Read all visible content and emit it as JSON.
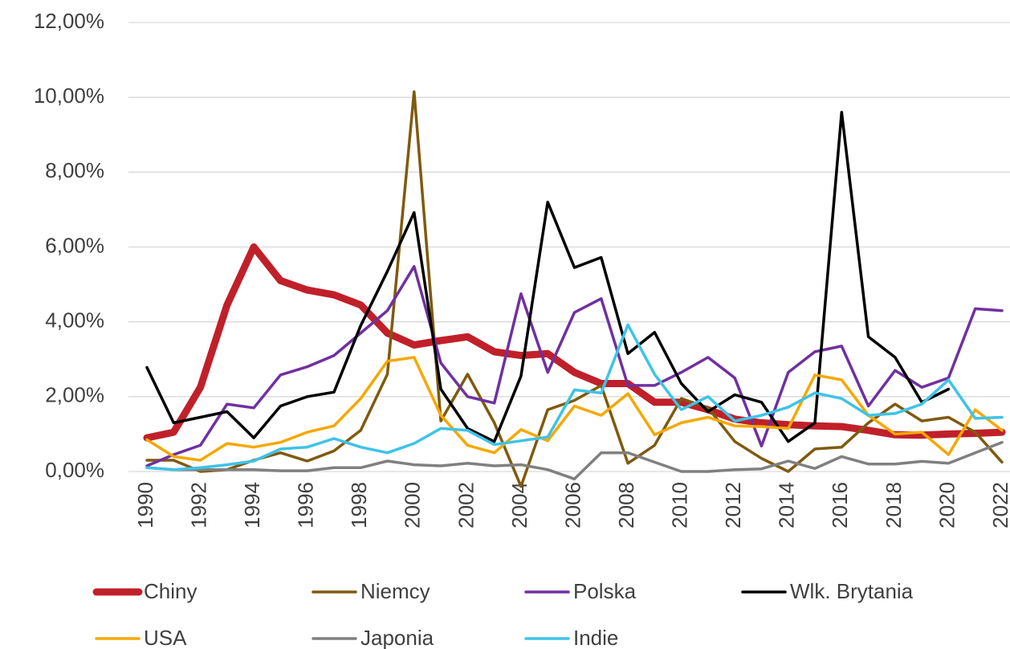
{
  "chart_data": {
    "type": "line",
    "x": [
      1990,
      1991,
      1992,
      1993,
      1994,
      1995,
      1996,
      1997,
      1998,
      1999,
      2000,
      2001,
      2002,
      2003,
      2004,
      2005,
      2006,
      2007,
      2008,
      2009,
      2010,
      2011,
      2012,
      2013,
      2014,
      2015,
      2016,
      2017,
      2018,
      2019,
      2020,
      2021,
      2022
    ],
    "xlim": [
      1990,
      2022
    ],
    "xticks": [
      1990,
      1992,
      1994,
      1996,
      1998,
      2000,
      2002,
      2004,
      2006,
      2008,
      2010,
      2012,
      2014,
      2016,
      2018,
      2020,
      2022
    ],
    "ylim": [
      0,
      12
    ],
    "yticks": [
      {
        "value": 0,
        "label": "0,00%"
      },
      {
        "value": 2,
        "label": "2,00%"
      },
      {
        "value": 4,
        "label": "4,00%"
      },
      {
        "value": 6,
        "label": "6,00%"
      },
      {
        "value": 8,
        "label": "8,00%"
      },
      {
        "value": 10,
        "label": "10,00%"
      },
      {
        "value": 12,
        "label": "12,00%"
      }
    ],
    "grid": true,
    "legend": "bottom",
    "series": [
      {
        "name": "Chiny",
        "color": "#c0202a",
        "line_width": 9,
        "values": [
          0.9,
          1.05,
          2.25,
          4.45,
          6.0,
          5.1,
          4.85,
          4.72,
          4.45,
          3.7,
          3.38,
          3.5,
          3.6,
          3.2,
          3.1,
          3.15,
          2.65,
          2.35,
          2.35,
          1.85,
          1.85,
          1.65,
          1.4,
          1.3,
          1.25,
          1.22,
          1.2,
          1.1,
          0.98,
          0.97,
          1.0,
          1.02,
          1.05
        ]
      },
      {
        "name": "Niemcy",
        "color": "#7f5a0e",
        "line_width": 3.5,
        "values": [
          0.3,
          0.3,
          0.0,
          0.05,
          0.3,
          0.5,
          0.28,
          0.55,
          1.1,
          2.6,
          10.15,
          1.35,
          2.6,
          1.3,
          -0.4,
          1.65,
          1.9,
          2.3,
          0.22,
          0.7,
          1.95,
          1.7,
          0.8,
          0.35,
          0.0,
          0.6,
          0.65,
          1.3,
          1.8,
          1.35,
          1.45,
          1.05,
          0.25
        ]
      },
      {
        "name": "Polska",
        "color": "#7030a0",
        "line_width": 3.5,
        "values": [
          0.15,
          0.45,
          0.7,
          1.8,
          1.7,
          2.58,
          2.8,
          3.1,
          3.7,
          4.3,
          5.48,
          2.9,
          2.0,
          1.83,
          4.75,
          2.65,
          4.25,
          4.62,
          2.3,
          2.3,
          2.65,
          3.05,
          2.5,
          0.68,
          2.65,
          3.2,
          3.35,
          1.75,
          2.7,
          2.25,
          2.5,
          4.35,
          4.3
        ]
      },
      {
        "name": "Wlk. Brytania",
        "color": "#000000",
        "line_width": 3.5,
        "values": [
          2.78,
          1.3,
          1.45,
          1.6,
          0.9,
          1.75,
          2.0,
          2.12,
          3.9,
          5.35,
          6.92,
          2.2,
          1.15,
          0.8,
          2.55,
          7.2,
          5.45,
          5.72,
          3.15,
          3.72,
          2.35,
          1.6,
          2.05,
          1.85,
          0.8,
          1.3,
          9.6,
          3.6,
          3.05,
          1.85,
          2.2,
          null,
          null
        ]
      },
      {
        "name": "USA",
        "color": "#f5a800",
        "line_width": 3.5,
        "values": [
          0.85,
          0.4,
          0.3,
          0.75,
          0.65,
          0.78,
          1.05,
          1.22,
          1.95,
          2.95,
          3.05,
          1.5,
          0.7,
          0.5,
          1.12,
          0.82,
          1.75,
          1.5,
          2.08,
          0.98,
          1.3,
          1.45,
          1.22,
          1.2,
          1.15,
          2.58,
          2.45,
          1.5,
          1.0,
          1.05,
          0.45,
          1.65,
          1.1
        ]
      },
      {
        "name": "Japonia",
        "color": "#808080",
        "line_width": 3.5,
        "values": [
          0.1,
          0.05,
          0.05,
          0.05,
          0.05,
          0.02,
          0.02,
          0.1,
          0.1,
          0.28,
          0.18,
          0.15,
          0.22,
          0.15,
          0.18,
          0.05,
          -0.2,
          0.5,
          0.5,
          0.25,
          0.0,
          0.0,
          0.05,
          0.07,
          0.28,
          0.08,
          0.4,
          0.2,
          0.2,
          0.27,
          0.22,
          0.5,
          0.78
        ]
      },
      {
        "name": "Indie",
        "color": "#3ec3e8",
        "line_width": 3.5,
        "values": [
          0.1,
          0.05,
          0.1,
          0.18,
          0.28,
          0.6,
          0.65,
          0.88,
          0.65,
          0.5,
          0.75,
          1.15,
          1.1,
          0.72,
          0.82,
          0.92,
          2.18,
          2.1,
          3.92,
          2.6,
          1.65,
          2.0,
          1.35,
          1.5,
          1.72,
          2.1,
          1.95,
          1.5,
          1.55,
          1.8,
          2.45,
          1.42,
          1.45
        ]
      }
    ]
  }
}
